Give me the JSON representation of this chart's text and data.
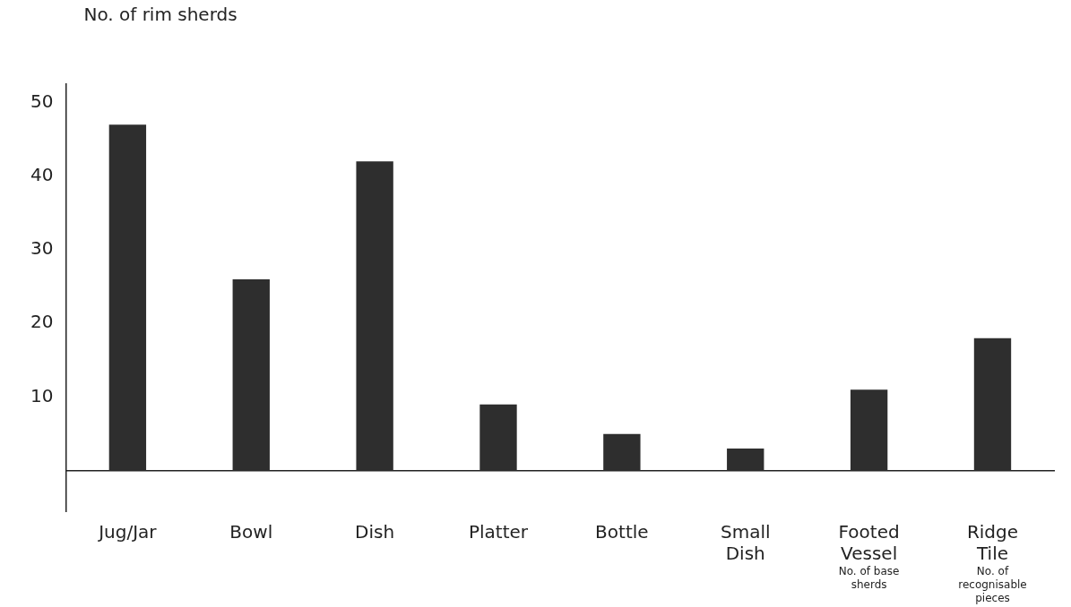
{
  "chart_data": {
    "type": "bar",
    "ylabel": "No. of rim sherds",
    "categories": [
      "Jug/Jar",
      "Bowl",
      "Dish",
      "Platter",
      "Bottle",
      "Small Dish",
      "Footed Vessel",
      "Ridge Tile"
    ],
    "values": [
      47,
      26,
      42,
      9,
      5,
      3,
      11,
      18
    ],
    "color": "#2e2e2e",
    "ylim": [
      -5.5,
      52.5
    ],
    "yticks": [
      10,
      20,
      30,
      40,
      50
    ],
    "grid": false,
    "legend": false,
    "annotations": [
      "No. of base sherds",
      "No. of recognisable pieces"
    ]
  }
}
